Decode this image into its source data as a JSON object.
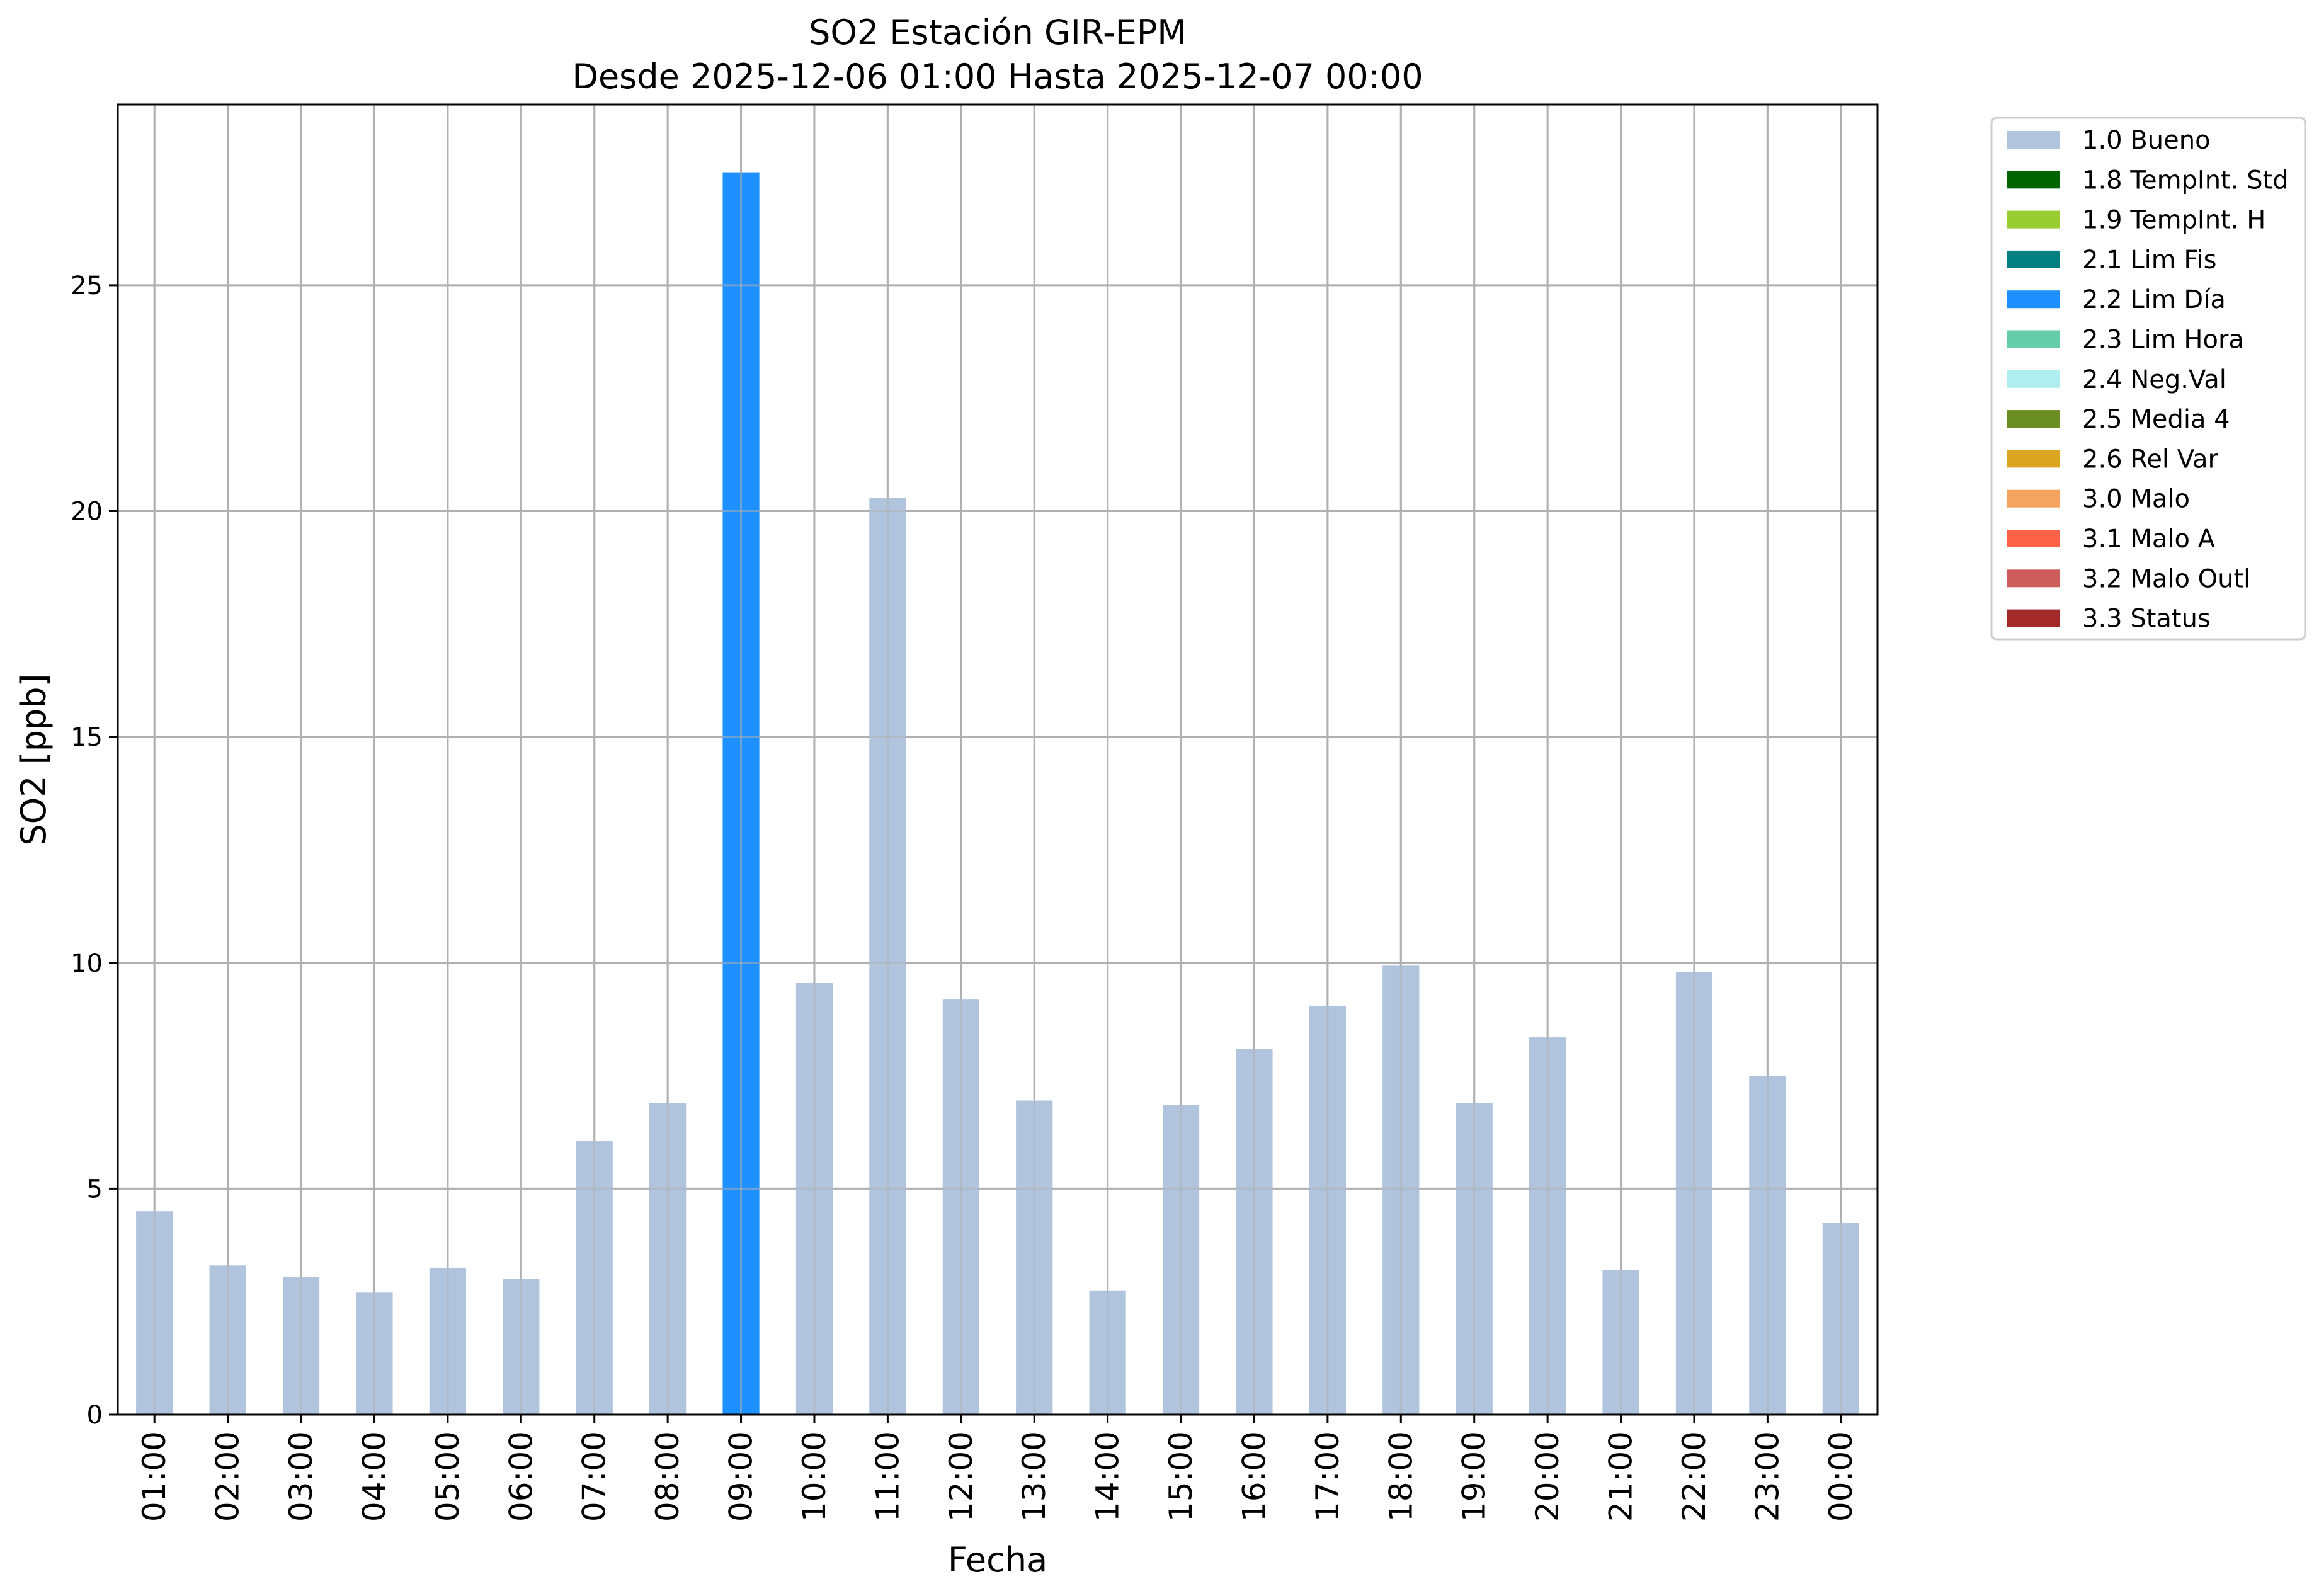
{
  "chart_data": {
    "type": "bar",
    "title": "SO2 Estación GIR-EPM",
    "subtitle": "Desde 2025-12-06 01:00 Hasta 2025-12-07 00:00",
    "xlabel": "Fecha",
    "ylabel": "SO2 [ppb]",
    "ylim": [
      0,
      29
    ],
    "yticks": [
      0,
      5,
      10,
      15,
      20,
      25
    ],
    "grid": true,
    "legend_position": "outside-top-right",
    "categories": [
      "01:00",
      "02:00",
      "03:00",
      "04:00",
      "05:00",
      "06:00",
      "07:00",
      "08:00",
      "09:00",
      "10:00",
      "11:00",
      "12:00",
      "13:00",
      "14:00",
      "15:00",
      "16:00",
      "17:00",
      "18:00",
      "19:00",
      "20:00",
      "21:00",
      "22:00",
      "23:00",
      "00:00"
    ],
    "values": [
      4.5,
      3.3,
      3.05,
      2.7,
      3.25,
      3.0,
      6.05,
      6.9,
      27.5,
      9.55,
      20.3,
      9.2,
      6.95,
      2.75,
      6.85,
      8.1,
      9.05,
      9.95,
      6.9,
      8.35,
      3.2,
      9.8,
      7.5,
      4.25
    ],
    "flags": [
      "1.0 Bueno",
      "1.0 Bueno",
      "1.0 Bueno",
      "1.0 Bueno",
      "1.0 Bueno",
      "1.0 Bueno",
      "1.0 Bueno",
      "1.0 Bueno",
      "2.2 Lim Día",
      "1.0 Bueno",
      "1.0 Bueno",
      "1.0 Bueno",
      "1.0 Bueno",
      "1.0 Bueno",
      "1.0 Bueno",
      "1.0 Bueno",
      "1.0 Bueno",
      "1.0 Bueno",
      "1.0 Bueno",
      "1.0 Bueno",
      "1.0 Bueno",
      "1.0 Bueno",
      "1.0 Bueno",
      "1.0 Bueno"
    ],
    "legend": [
      {
        "label": "1.0 Bueno",
        "color": "#b0c4de"
      },
      {
        "label": "1.8 TempInt. Std",
        "color": "#006400"
      },
      {
        "label": "1.9 TempInt. H",
        "color": "#9acd32"
      },
      {
        "label": "2.1 Lim Fis",
        "color": "#008080"
      },
      {
        "label": "2.2 Lim Día",
        "color": "#1e90ff"
      },
      {
        "label": "2.3 Lim Hora",
        "color": "#66cdaa"
      },
      {
        "label": "2.4 Neg.Val",
        "color": "#afeeee"
      },
      {
        "label": "2.5 Media 4",
        "color": "#6b8e23"
      },
      {
        "label": "2.6 Rel Var",
        "color": "#daa520"
      },
      {
        "label": "3.0 Malo",
        "color": "#f4a460"
      },
      {
        "label": "3.1 Malo A",
        "color": "#ff6347"
      },
      {
        "label": "3.2 Malo Outl",
        "color": "#cd5c5c"
      },
      {
        "label": "3.3 Status",
        "color": "#a52a2a"
      }
    ]
  }
}
